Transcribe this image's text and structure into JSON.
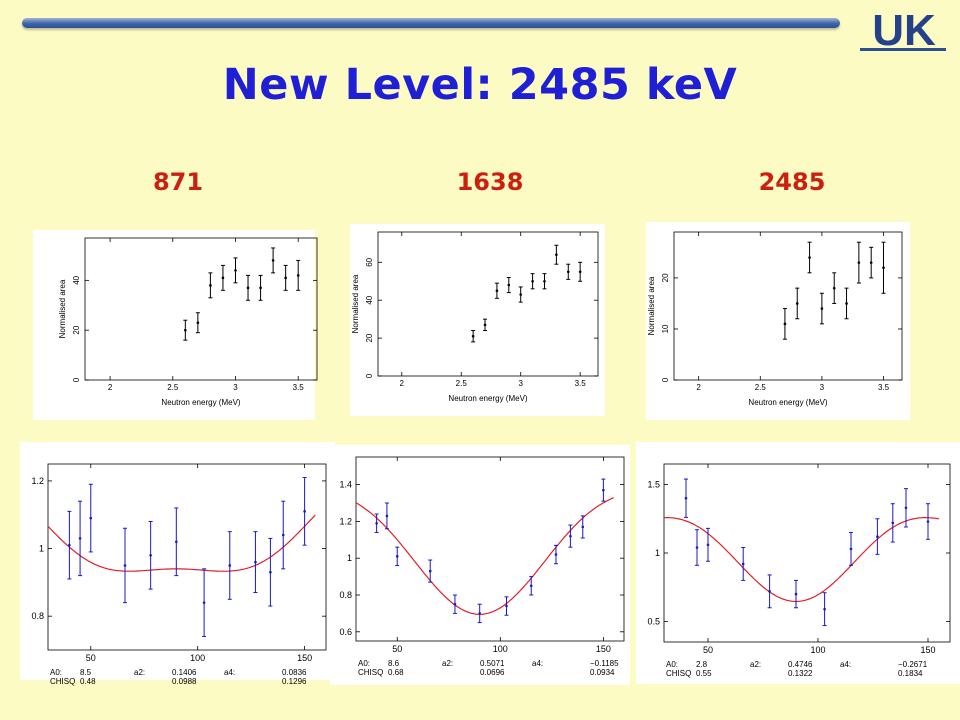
{
  "title": "New Level: 2485 keV",
  "columns": [
    "871",
    "1638",
    "2485"
  ],
  "colors": {
    "background": "#fdfbc4",
    "title": "#1f1fd6",
    "column_heading": "#cc1f10",
    "data_points": "#1818c8",
    "fit_curve": "#e0202a",
    "bar_color": "#2b4f93"
  },
  "logo": {
    "icon": "uk-logo",
    "text": "UK"
  },
  "chart_data": [
    {
      "type": "scatter",
      "xlabel": "Neutron energy (MeV)",
      "ylabel": "Normalised area",
      "xlim": [
        1.8,
        3.65
      ],
      "ylim": [
        0,
        57
      ],
      "xticks": [
        2,
        2.5,
        3,
        3.5
      ],
      "yticks": [
        0,
        20,
        40
      ],
      "x": [
        2.6,
        2.7,
        2.8,
        2.9,
        3.0,
        3.1,
        3.2,
        3.3,
        3.4,
        3.5
      ],
      "y": [
        20,
        23,
        38,
        41,
        44,
        37,
        37,
        48,
        41,
        42
      ],
      "err": [
        4,
        4,
        5,
        5,
        5,
        5,
        5,
        5,
        5,
        6
      ]
    },
    {
      "type": "scatter",
      "xlabel": "Neutron energy (MeV)",
      "ylabel": "Normalised area",
      "xlim": [
        1.8,
        3.65
      ],
      "ylim": [
        0,
        76
      ],
      "xticks": [
        2,
        2.5,
        3,
        3.5
      ],
      "yticks": [
        0,
        20,
        40,
        60
      ],
      "x": [
        2.6,
        2.7,
        2.8,
        2.9,
        3.0,
        3.1,
        3.2,
        3.3,
        3.4,
        3.5
      ],
      "y": [
        21,
        27,
        45,
        48,
        43,
        50,
        50,
        64,
        55,
        55
      ],
      "err": [
        3,
        3,
        4,
        4,
        4,
        4,
        4,
        5,
        4,
        5
      ]
    },
    {
      "type": "scatter",
      "xlabel": "Neutron energy (MeV)",
      "ylabel": "Normalised area",
      "xlim": [
        1.8,
        3.65
      ],
      "ylim": [
        0,
        29
      ],
      "xticks": [
        2,
        2.5,
        3,
        3.5
      ],
      "yticks": [
        0,
        10,
        20
      ],
      "x": [
        2.7,
        2.8,
        2.9,
        3.0,
        3.1,
        3.2,
        3.3,
        3.4,
        3.5
      ],
      "y": [
        11,
        15,
        24,
        14,
        18,
        15,
        23,
        23,
        22
      ],
      "err": [
        3,
        3,
        3,
        3,
        3,
        3,
        4,
        3,
        5
      ]
    },
    {
      "type": "scatter",
      "xlim": [
        30,
        160
      ],
      "ylim": [
        0.7,
        1.25
      ],
      "xticks": [
        50,
        100,
        150
      ],
      "yticks": [
        0.8,
        1,
        1.2
      ],
      "x": [
        40,
        45,
        50,
        66,
        78,
        90,
        103,
        115,
        127,
        134,
        140,
        150
      ],
      "y": [
        1.01,
        1.03,
        1.09,
        0.95,
        0.98,
        1.02,
        0.84,
        0.95,
        0.96,
        0.93,
        1.04,
        1.11
      ],
      "err": [
        0.1,
        0.11,
        0.1,
        0.11,
        0.1,
        0.1,
        0.1,
        0.1,
        0.09,
        0.1,
        0.1,
        0.1
      ],
      "fit": {
        "a0": 0.978,
        "a2": 0.1406,
        "a4": 0.0836
      },
      "fit_params": [
        {
          "label": "A0:",
          "value": "8.5",
          "err": "0.48"
        },
        {
          "label": "a2:",
          "value": "0.1406",
          "err": "0.0988"
        },
        {
          "label": "a4:",
          "value": "0.0836",
          "err": "0.1296"
        }
      ],
      "chisq_label": "CHISQ"
    },
    {
      "type": "scatter",
      "xlim": [
        30,
        160
      ],
      "ylim": [
        0.55,
        1.55
      ],
      "xticks": [
        50,
        100,
        150
      ],
      "yticks": [
        0.6,
        0.8,
        1,
        1.2,
        1.4
      ],
      "x": [
        40,
        45,
        50,
        66,
        78,
        90,
        103,
        115,
        127,
        134,
        140,
        150
      ],
      "y": [
        1.19,
        1.23,
        1.01,
        0.93,
        0.75,
        0.7,
        0.74,
        0.85,
        1.02,
        1.12,
        1.17,
        1.37
      ],
      "err": [
        0.05,
        0.07,
        0.05,
        0.06,
        0.05,
        0.05,
        0.05,
        0.05,
        0.05,
        0.06,
        0.06,
        0.06
      ],
      "fit": {
        "a0": 0.99,
        "a2": 0.5071,
        "a4": -0.1185
      },
      "fit_params": [
        {
          "label": "A0:",
          "value": "8.6",
          "err": "0.68"
        },
        {
          "label": "a2:",
          "value": "0.5071",
          "err": "0.0696"
        },
        {
          "label": "a4:",
          "value": "−0.1185",
          "err": "0.0934"
        }
      ],
      "chisq_label": "CHISQ"
    },
    {
      "type": "scatter",
      "xlim": [
        30,
        160
      ],
      "ylim": [
        0.35,
        1.65
      ],
      "xticks": [
        50,
        100,
        150
      ],
      "yticks": [
        0.5,
        1,
        1.5
      ],
      "x": [
        40,
        45,
        50,
        66,
        78,
        90,
        103,
        115,
        127,
        134,
        140,
        150
      ],
      "y": [
        1.4,
        1.04,
        1.06,
        0.92,
        0.72,
        0.7,
        0.59,
        1.03,
        1.12,
        1.22,
        1.33,
        1.23
      ],
      "err": [
        0.14,
        0.13,
        0.12,
        0.12,
        0.12,
        0.1,
        0.12,
        0.12,
        0.13,
        0.14,
        0.14,
        0.13
      ],
      "fit": {
        "a0": 0.975,
        "a2": 0.4746,
        "a4": -0.2671
      },
      "fit_params": [
        {
          "label": "A0:",
          "value": "2.8",
          "err": "0.55"
        },
        {
          "label": "a2:",
          "value": "0.4746",
          "err": "0.1322"
        },
        {
          "label": "a4:",
          "value": "−0.2671",
          "err": "0.1834"
        }
      ],
      "chisq_label": "CHISQ"
    }
  ]
}
